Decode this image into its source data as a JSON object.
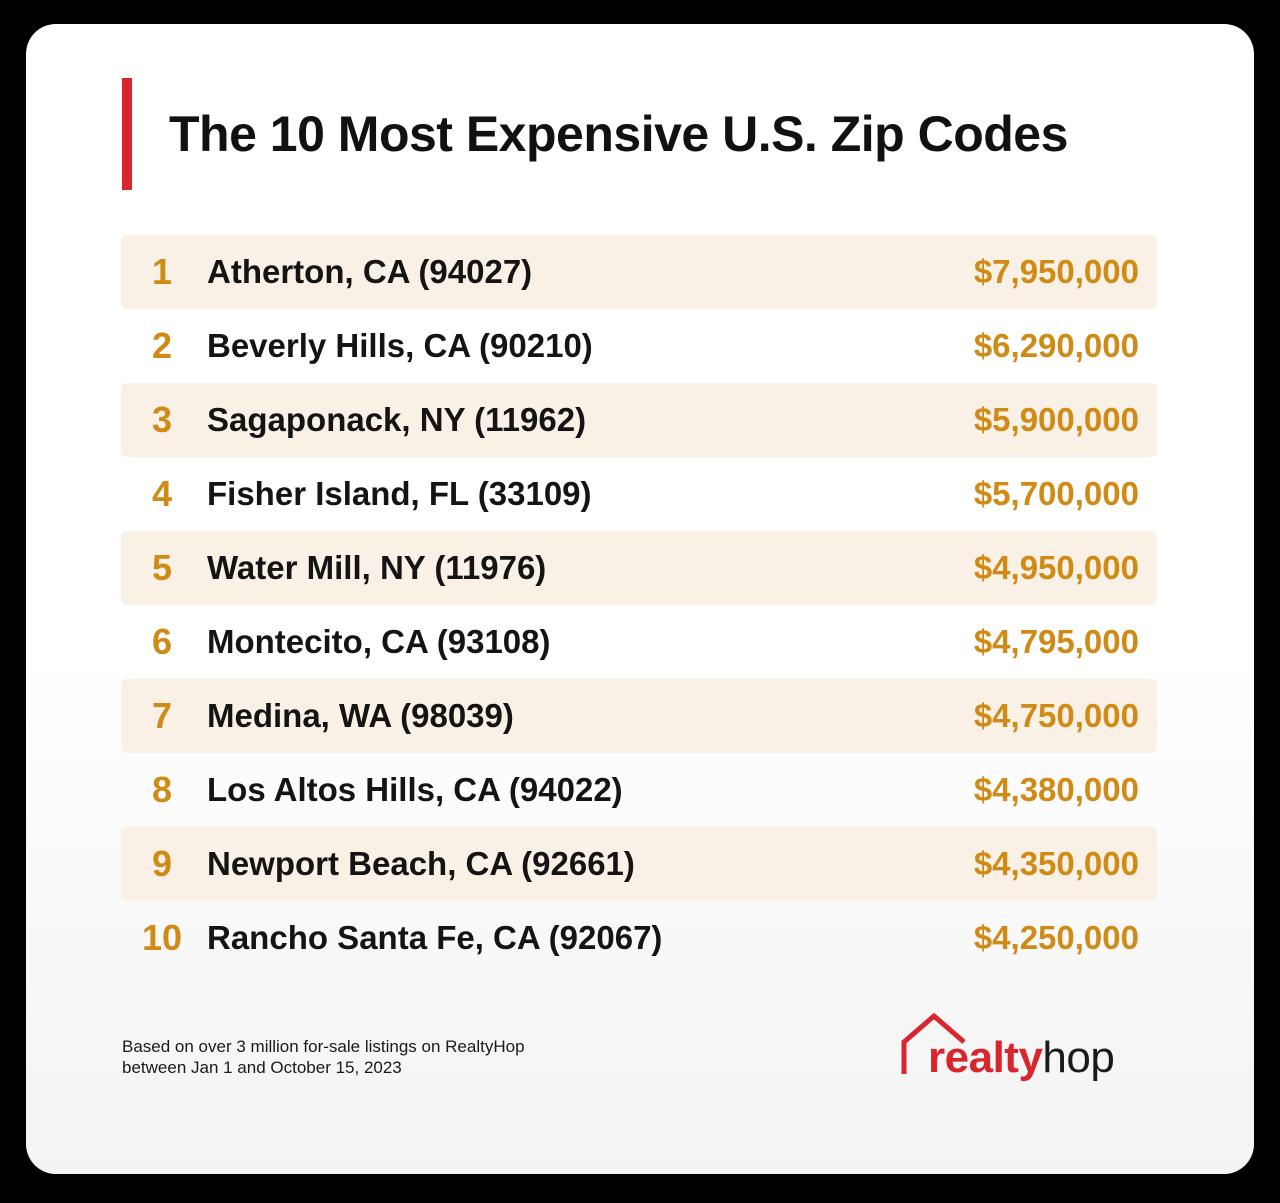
{
  "title": "The 10 Most Expensive U.S. Zip Codes",
  "colors": {
    "accent_red": "#d9262e",
    "gold": "#d08a16",
    "row_shade": "#faf1e6"
  },
  "rows": [
    {
      "rank": "1",
      "place": "Atherton, CA (94027)",
      "price": "$7,950,000"
    },
    {
      "rank": "2",
      "place": "Beverly Hills, CA (90210)",
      "price": "$6,290,000"
    },
    {
      "rank": "3",
      "place": "Sagaponack, NY (11962)",
      "price": "$5,900,000"
    },
    {
      "rank": "4",
      "place": "Fisher Island, FL (33109)",
      "price": "$5,700,000"
    },
    {
      "rank": "5",
      "place": "Water Mill, NY (11976)",
      "price": "$4,950,000"
    },
    {
      "rank": "6",
      "place": "Montecito, CA (93108)",
      "price": "$4,795,000"
    },
    {
      "rank": "7",
      "place": "Medina, WA (98039)",
      "price": "$4,750,000"
    },
    {
      "rank": "8",
      "place": "Los Altos Hills, CA (94022)",
      "price": "$4,380,000"
    },
    {
      "rank": "9",
      "place": "Newport Beach, CA (92661)",
      "price": "$4,350,000"
    },
    {
      "rank": "10",
      "place": "Rancho Santa Fe, CA (92067)",
      "price": "$4,250,000"
    }
  ],
  "footnote": {
    "line1": "Based on over 3 million for-sale listings on RealtyHop",
    "line2": "between Jan 1 and October 15, 2023"
  },
  "logo": {
    "realty": "realty",
    "hop": "hop",
    "icon": "house-roof-icon"
  }
}
